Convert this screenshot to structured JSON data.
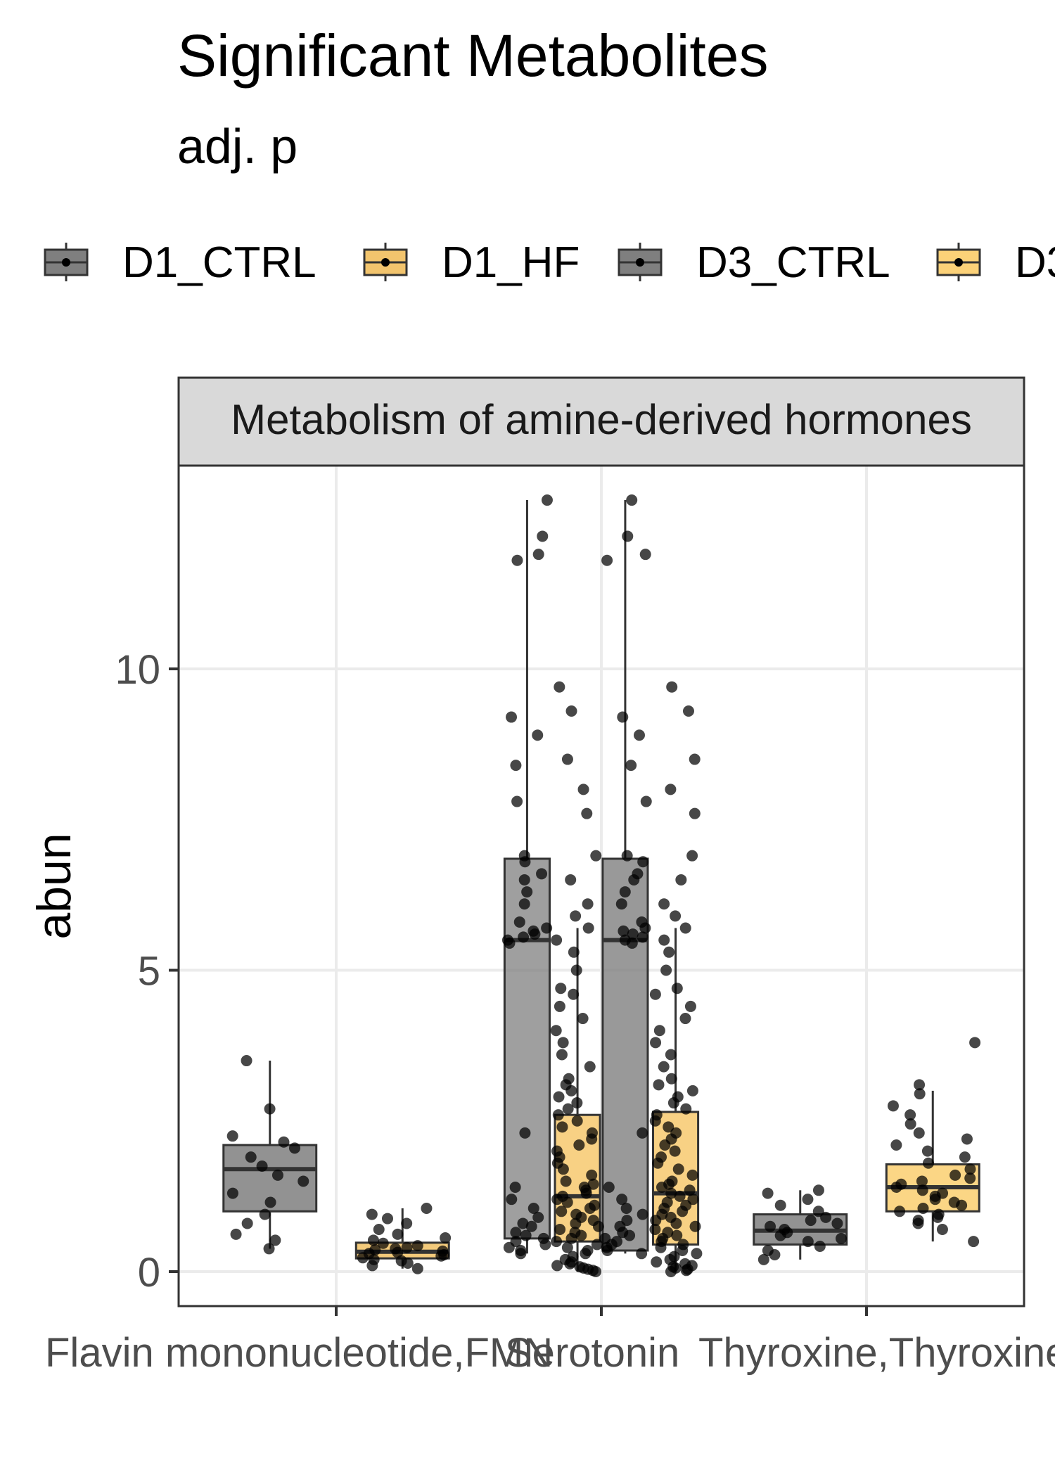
{
  "chart_data": {
    "type": "boxplot",
    "title": "Significant Metabolites",
    "subtitle": "adj. p",
    "ylabel": "abun",
    "xlabel": "",
    "facet_label": "Metabolism of amine-derived hormones",
    "ylim": [
      -0.9,
      13.6
    ],
    "y_ticks": [
      0,
      5,
      10
    ],
    "y_tick_labels": [
      "0",
      "5",
      "10"
    ],
    "grid": true,
    "legend_position": "top",
    "legend": [
      {
        "label": "D1_CTRL",
        "color": "#7f7f7f"
      },
      {
        "label": "D1_HF",
        "color": "#f2c46d"
      },
      {
        "label": "D3_CTRL",
        "color": "#7f7f7f"
      },
      {
        "label": "D3",
        "color": "#fbd178"
      }
    ],
    "categories": [
      "Flavin mononucleotide,FMN",
      "Serotonin",
      "Thyroxine,Thyroxine ("
    ],
    "x_tick_labels": [
      {
        "text": "Flavin mononucleotide,FMN"
      },
      {
        "text": "Serotonin"
      },
      {
        "text": "Thyroxine,Thyroxine ("
      }
    ],
    "boxes": [
      {
        "category": 0,
        "offset": -0.25,
        "width": 0.35,
        "fill": "#7f7f7f",
        "opacity": 0.85,
        "q1": 1.0,
        "median": 1.7,
        "q3": 2.1,
        "whisker_low": 0.38,
        "whisker_high": 3.5,
        "points": [
          0.38,
          0.52,
          0.62,
          0.8,
          0.95,
          1.15,
          1.3,
          1.5,
          1.6,
          1.75,
          1.9,
          2.05,
          2.15,
          2.25,
          2.7,
          3.5
        ]
      },
      {
        "category": 0,
        "offset": 0.25,
        "width": 0.35,
        "fill": "#f2c46d",
        "opacity": 0.9,
        "q1": 0.22,
        "median": 0.33,
        "q3": 0.48,
        "whisker_low": 0.05,
        "whisker_high": 1.05,
        "points": [
          0.05,
          0.1,
          0.14,
          0.18,
          0.2,
          0.23,
          0.26,
          0.28,
          0.3,
          0.32,
          0.34,
          0.36,
          0.38,
          0.4,
          0.43,
          0.47,
          0.52,
          0.56,
          0.62,
          0.7,
          0.8,
          0.88,
          0.95,
          1.05
        ]
      },
      {
        "category": 1,
        "offset": -0.28,
        "width": 0.17,
        "fill": "#7f7f7f",
        "opacity": 0.75,
        "q1": 0.55,
        "median": 5.5,
        "q3": 6.85,
        "whisker_low": 0.3,
        "whisker_high": 12.8,
        "points": [
          0.3,
          0.35,
          0.4,
          0.45,
          0.5,
          0.55,
          0.6,
          0.65,
          0.75,
          0.8,
          0.9,
          1.05,
          1.2,
          1.4,
          2.3,
          5.45,
          5.5,
          5.55,
          5.6,
          5.65,
          5.7,
          5.8,
          6.1,
          6.3,
          6.5,
          6.6,
          6.8,
          6.9,
          7.8,
          8.4,
          8.9,
          9.2,
          11.8,
          11.9,
          12.2,
          12.8
        ]
      },
      {
        "category": 1,
        "offset": -0.09,
        "width": 0.17,
        "fill": "#f7c96e",
        "opacity": 0.85,
        "q1": 0.5,
        "median": 1.25,
        "q3": 2.6,
        "whisker_low": 0.0,
        "whisker_high": 5.7,
        "points": [
          0.0,
          0.02,
          0.04,
          0.06,
          0.08,
          0.1,
          0.13,
          0.16,
          0.2,
          0.25,
          0.3,
          0.35,
          0.4,
          0.45,
          0.5,
          0.55,
          0.6,
          0.65,
          0.7,
          0.75,
          0.8,
          0.85,
          0.9,
          0.95,
          1.0,
          1.05,
          1.1,
          1.15,
          1.2,
          1.25,
          1.3,
          1.35,
          1.4,
          1.45,
          1.5,
          1.6,
          1.7,
          1.8,
          1.9,
          2.0,
          2.1,
          2.2,
          2.3,
          2.4,
          2.5,
          2.6,
          2.7,
          2.8,
          2.9,
          3.0,
          3.1,
          3.2,
          3.4,
          3.6,
          3.8,
          4.0,
          4.2,
          4.4,
          4.6,
          4.7,
          5.0,
          5.3,
          5.5,
          5.7,
          5.9,
          6.1,
          6.5,
          6.9,
          7.6,
          8.0,
          8.5,
          9.3,
          9.7
        ]
      },
      {
        "category": 1,
        "offset": 0.09,
        "width": 0.17,
        "fill": "#7f7f7f",
        "opacity": 0.8,
        "q1": 0.35,
        "median": 5.5,
        "q3": 6.85,
        "whisker_low": 0.3,
        "whisker_high": 12.8,
        "points": [
          0.3,
          0.35,
          0.4,
          0.45,
          0.5,
          0.55,
          0.6,
          0.65,
          0.75,
          0.85,
          0.95,
          1.05,
          1.2,
          1.4,
          2.3,
          5.45,
          5.5,
          5.55,
          5.6,
          5.65,
          5.7,
          5.8,
          6.1,
          6.3,
          6.5,
          6.6,
          6.8,
          6.9,
          7.8,
          8.4,
          8.9,
          9.2,
          11.8,
          11.9,
          12.2,
          12.8
        ]
      },
      {
        "category": 1,
        "offset": 0.28,
        "width": 0.17,
        "fill": "#f7c96e",
        "opacity": 0.85,
        "q1": 0.45,
        "median": 1.3,
        "q3": 2.65,
        "whisker_low": 0.0,
        "whisker_high": 5.7,
        "points": [
          0.0,
          0.02,
          0.04,
          0.06,
          0.08,
          0.1,
          0.13,
          0.16,
          0.2,
          0.25,
          0.3,
          0.35,
          0.4,
          0.45,
          0.5,
          0.55,
          0.6,
          0.65,
          0.7,
          0.75,
          0.8,
          0.85,
          0.9,
          0.95,
          1.0,
          1.05,
          1.1,
          1.15,
          1.2,
          1.25,
          1.3,
          1.35,
          1.4,
          1.45,
          1.5,
          1.6,
          1.7,
          1.8,
          1.9,
          2.0,
          2.1,
          2.2,
          2.3,
          2.4,
          2.5,
          2.6,
          2.7,
          2.8,
          2.9,
          3.0,
          3.1,
          3.2,
          3.4,
          3.6,
          3.8,
          4.0,
          4.2,
          4.4,
          4.6,
          4.7,
          5.0,
          5.3,
          5.5,
          5.7,
          5.9,
          6.1,
          6.5,
          6.9,
          7.6,
          8.0,
          8.5,
          9.3,
          9.7
        ]
      },
      {
        "category": 2,
        "offset": -0.25,
        "width": 0.35,
        "fill": "#7f7f7f",
        "opacity": 0.85,
        "q1": 0.45,
        "median": 0.68,
        "q3": 0.95,
        "whisker_low": 0.2,
        "whisker_high": 1.35,
        "points": [
          0.2,
          0.28,
          0.35,
          0.42,
          0.5,
          0.55,
          0.6,
          0.65,
          0.7,
          0.75,
          0.8,
          0.85,
          0.9,
          1.0,
          1.1,
          1.2,
          1.3,
          1.35
        ]
      },
      {
        "category": 2,
        "offset": 0.25,
        "width": 0.35,
        "fill": "#fbd178",
        "opacity": 0.9,
        "q1": 1.0,
        "median": 1.4,
        "q3": 1.78,
        "whisker_low": 0.5,
        "whisker_high": 3.0,
        "points": [
          0.5,
          0.7,
          0.8,
          0.85,
          0.9,
          0.95,
          1.0,
          1.05,
          1.1,
          1.15,
          1.2,
          1.25,
          1.3,
          1.35,
          1.4,
          1.45,
          1.5,
          1.55,
          1.6,
          1.7,
          1.8,
          1.9,
          2.0,
          2.1,
          2.2,
          2.3,
          2.45,
          2.6,
          2.75,
          2.95,
          3.1,
          3.8
        ]
      }
    ]
  }
}
